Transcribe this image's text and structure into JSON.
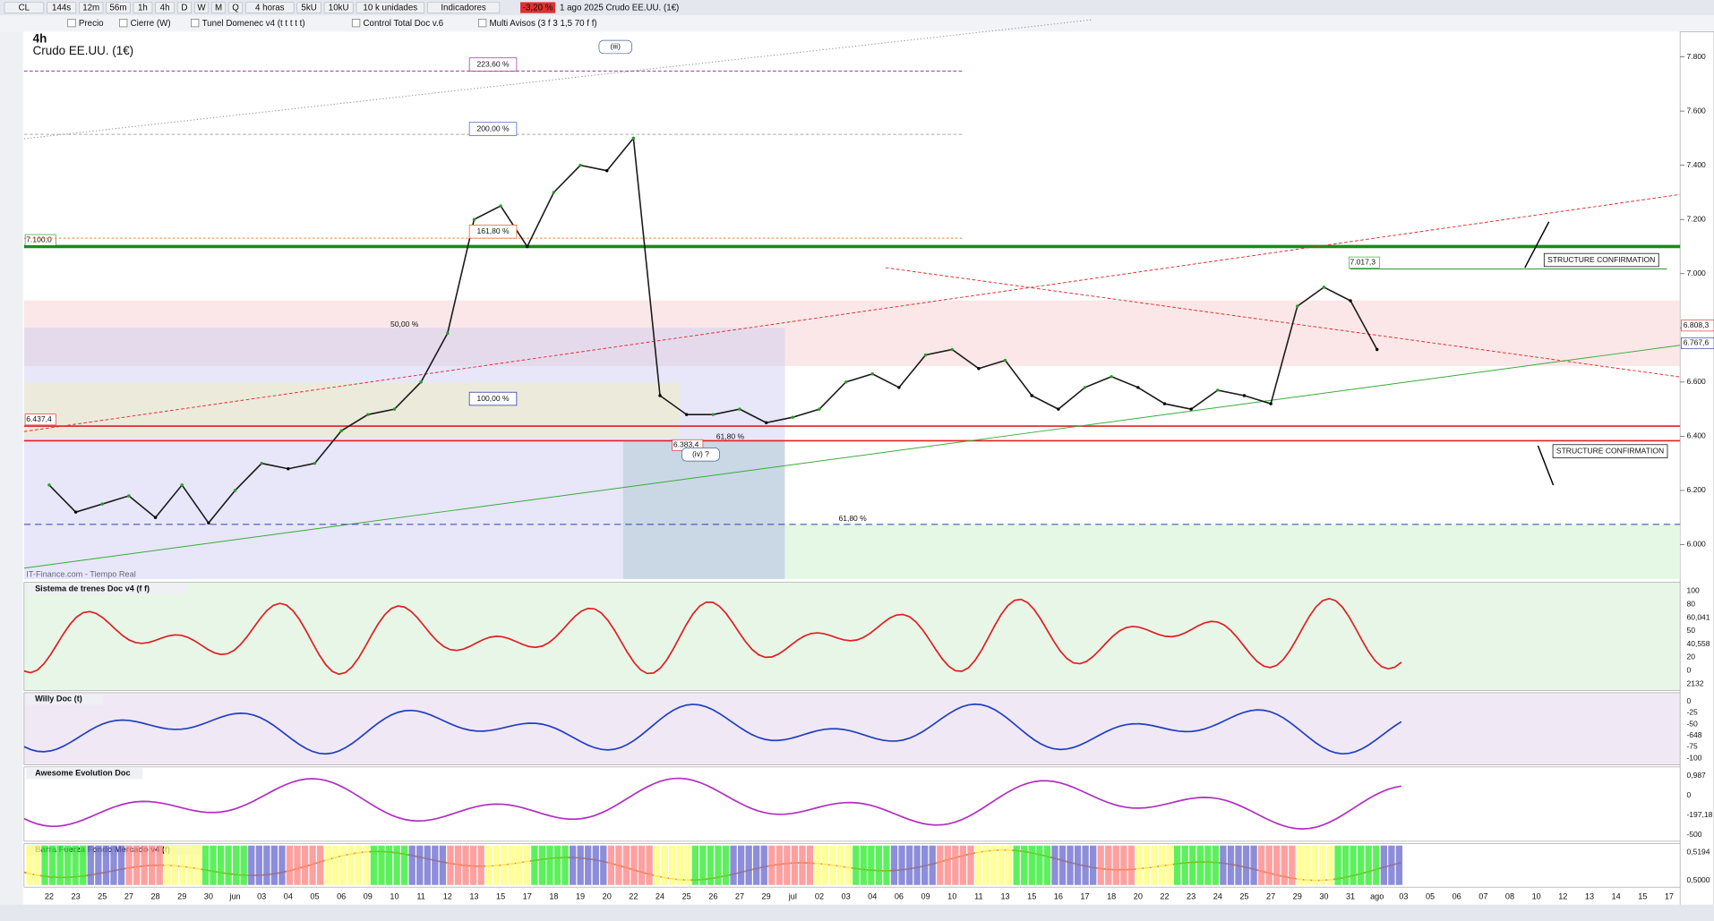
{
  "toolbar": {
    "symbol": "CL",
    "timeframes": [
      "144s",
      "12m",
      "56m",
      "1h",
      "4h",
      "D",
      "W",
      "M",
      "Q"
    ],
    "period": "4 horas",
    "units": [
      "5kU",
      "10kU"
    ],
    "unit_select": "10 k unidades",
    "indicators": "Indicadores",
    "change": "-3,20 %",
    "info": "1 ago 2025 Crudo EE.UU. (1€)"
  },
  "legend": [
    "Precio",
    "Cierre (W)",
    "Tunel Domenec v4 (t t t t t)",
    "Control Total Doc v.6",
    "Multi Avisos (3 f 3 1,5 70 f f)"
  ],
  "chart_data": {
    "type": "line",
    "title": "4h",
    "subtitle": "Crudo EE.UU. (1€)",
    "source": "IT-Finance.com - Tiempo Real",
    "categories": [
      "22",
      "23",
      "25",
      "27",
      "28",
      "29",
      "30",
      "jun",
      "03",
      "04",
      "05",
      "06",
      "09",
      "10",
      "11",
      "12",
      "13",
      "15",
      "17",
      "18",
      "19",
      "20",
      "22",
      "24",
      "25",
      "26",
      "27",
      "29",
      "jul",
      "02",
      "03",
      "04",
      "06",
      "09",
      "10",
      "11",
      "13",
      "15",
      "16",
      "17",
      "18",
      "20",
      "22",
      "23",
      "24",
      "25",
      "27",
      "29",
      "30",
      "31",
      "ago",
      "03",
      "05",
      "06",
      "07",
      "08",
      "10",
      "12",
      "13",
      "14",
      "15",
      "17"
    ],
    "series": [
      {
        "name": "Precio",
        "color": "#1a1a1a",
        "values": [
          6220,
          6120,
          6150,
          6180,
          6100,
          6220,
          6080,
          6200,
          6300,
          6280,
          6300,
          6420,
          6480,
          6500,
          6600,
          6780,
          7200,
          7250,
          7100,
          7300,
          7400,
          7380,
          7500,
          6550,
          6480,
          6480,
          6500,
          6450,
          6470,
          6500,
          6600,
          6630,
          6580,
          6700,
          6720,
          6650,
          6680,
          6550,
          6500,
          6580,
          6620,
          6580,
          6520,
          6500,
          6570,
          6550,
          6520,
          6880,
          6950,
          6900,
          6720,
          null,
          null,
          null,
          null,
          null,
          null,
          null,
          null,
          null,
          null,
          null
        ]
      }
    ],
    "ylim": [
      5873,
      7889
    ],
    "yticks": [
      {
        "value": 7800,
        "label": "7.800"
      },
      {
        "value": 7600,
        "label": "7.600"
      },
      {
        "value": 7400,
        "label": "7.400"
      },
      {
        "value": 7200,
        "label": "7.200"
      },
      {
        "value": 7000,
        "label": "7.000"
      },
      {
        "value": 6800,
        "label": "6.800"
      },
      {
        "value": 6600,
        "label": "6.600"
      },
      {
        "value": 6400,
        "label": "6.400"
      },
      {
        "value": 6200,
        "label": "6.200"
      },
      {
        "value": 6000,
        "label": "6.000"
      }
    ],
    "levels": [
      {
        "value": 7100,
        "label": "7.100,0",
        "color": "#1a8a1a"
      },
      {
        "value": 6437.4,
        "label": "6.437,4",
        "color": "#e02020"
      },
      {
        "value": 6383.4,
        "label": "6.383,4",
        "color": "#e02020"
      },
      {
        "value": 7017.3,
        "label": "7.017,3",
        "color": "#2a9a2a"
      }
    ],
    "price_labels": [
      {
        "value": 6808.3,
        "label": "6.808,3",
        "color": "#e02020"
      },
      {
        "value": 6767.6,
        "label": "6.767,6",
        "color": "#2030a0"
      }
    ],
    "annotations": [
      "223,60 %",
      "(iii)",
      "200,00 %",
      "161,80 %",
      "50,00 %",
      "100,00 %",
      "61,80 %",
      "(iv) ?",
      "61,80 %",
      "STRUCTURE CONFIRMATION",
      "STRUCTURE CONFIRMATION"
    ]
  },
  "panels": [
    {
      "title": "Sistema de trenes Doc v4 (f f)",
      "labels": [
        "100",
        "80",
        "60,041",
        "50",
        "40,558",
        "20",
        "0",
        "2132"
      ]
    },
    {
      "title": "Willy Doc (t)",
      "labels": [
        "0",
        "-25",
        "-50",
        "-648",
        "-75",
        "-100"
      ]
    },
    {
      "title": "Awesome Evolution Doc",
      "labels": [
        "0,987",
        "0",
        "-197,18",
        "-500"
      ]
    },
    {
      "title": "Barra Fuerza Fondo Mercado v4 (f)",
      "labels": [
        "0,5194",
        "0,5000"
      ]
    }
  ]
}
